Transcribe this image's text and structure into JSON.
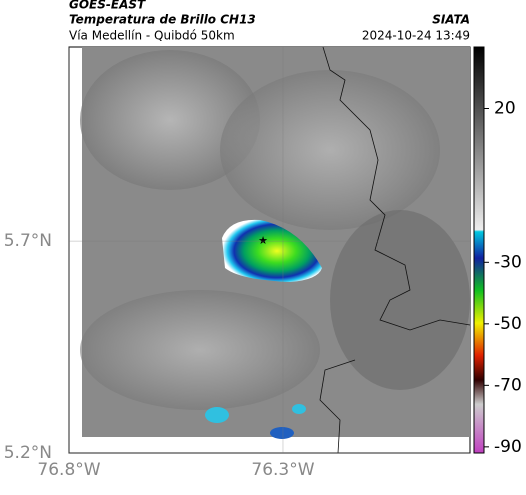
{
  "header": {
    "title": "GOES-EAST",
    "subtitle": "Temperatura de Brillo CH13",
    "brand": "SIATA",
    "route": "Vía Medellín - Quibdó 50km",
    "timestamp": "2024-10-24 13:49"
  },
  "map": {
    "xlim": [
      -76.8,
      -75.863
    ],
    "ylim": [
      5.2,
      6.158
    ],
    "xticks": [
      {
        "value": -76.8,
        "label": "76.8°W"
      },
      {
        "value": -76.3,
        "label": "76.3°W"
      }
    ],
    "yticks": [
      {
        "value": 5.2,
        "label": "5.2°N"
      },
      {
        "value": 5.7,
        "label": "5.7°N"
      }
    ]
  },
  "colorbar": {
    "lim": [
      -92,
      40
    ],
    "ticks": [
      20,
      -30,
      -50,
      -70,
      -90
    ]
  }
}
